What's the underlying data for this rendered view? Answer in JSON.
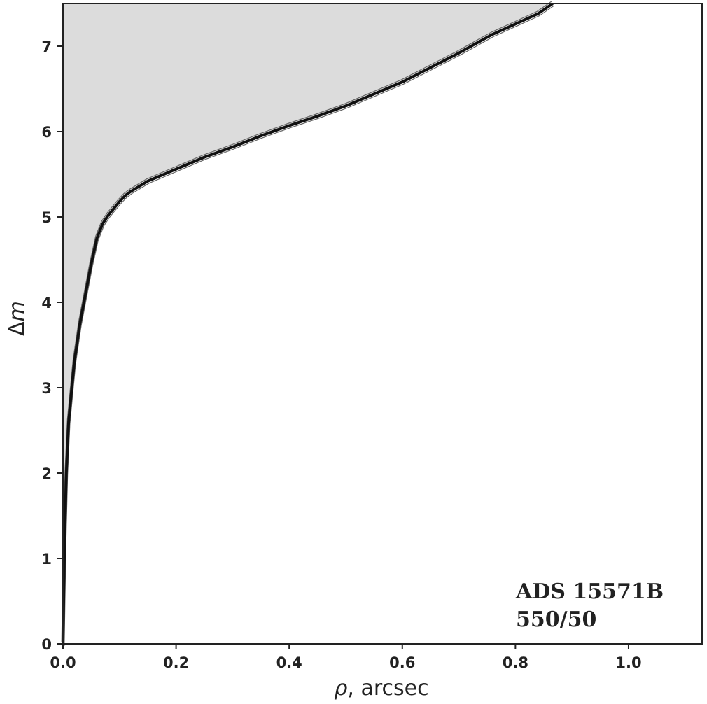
{
  "chart_data": {
    "type": "line",
    "xlabel_symbol": "ρ",
    "xlabel_rest": ", arcsec",
    "ylabel_prefix": "Δ",
    "ylabel_var": "m",
    "xlim": [
      0,
      1.13
    ],
    "ylim": [
      0,
      7.5
    ],
    "x_ticks": [
      {
        "value": 0.0,
        "label": "0.0"
      },
      {
        "value": 0.2,
        "label": "0.2"
      },
      {
        "value": 0.4,
        "label": "0.4"
      },
      {
        "value": 0.6,
        "label": "0.6"
      },
      {
        "value": 0.8,
        "label": "0.8"
      },
      {
        "value": 1.0,
        "label": "1.0"
      }
    ],
    "y_ticks": [
      {
        "value": 0,
        "label": "0"
      },
      {
        "value": 1,
        "label": "1"
      },
      {
        "value": 2,
        "label": "2"
      },
      {
        "value": 3,
        "label": "3"
      },
      {
        "value": 4,
        "label": "4"
      },
      {
        "value": 5,
        "label": "5"
      },
      {
        "value": 6,
        "label": "6"
      },
      {
        "value": 7,
        "label": "7"
      }
    ],
    "annotation": [
      "ADS 15571B",
      "550/50"
    ],
    "fill_color": "#dcdcdc",
    "line_color": "#111111",
    "band_color": "#666666",
    "series": [
      {
        "x": [
          0.0,
          0.003,
          0.006,
          0.01,
          0.015,
          0.02,
          0.03,
          0.04,
          0.05,
          0.06,
          0.07,
          0.08,
          0.09,
          0.1,
          0.11,
          0.12,
          0.15,
          0.2,
          0.25,
          0.3,
          0.35,
          0.4,
          0.45,
          0.5,
          0.55,
          0.6,
          0.65,
          0.7,
          0.73,
          0.76,
          0.8,
          0.84,
          0.866
        ],
        "y": [
          0.0,
          1.2,
          2.0,
          2.6,
          2.95,
          3.3,
          3.75,
          4.1,
          4.45,
          4.75,
          4.92,
          5.02,
          5.1,
          5.18,
          5.25,
          5.3,
          5.42,
          5.56,
          5.7,
          5.82,
          5.95,
          6.07,
          6.18,
          6.3,
          6.44,
          6.58,
          6.75,
          6.92,
          7.03,
          7.14,
          7.26,
          7.38,
          7.5
        ]
      }
    ]
  }
}
